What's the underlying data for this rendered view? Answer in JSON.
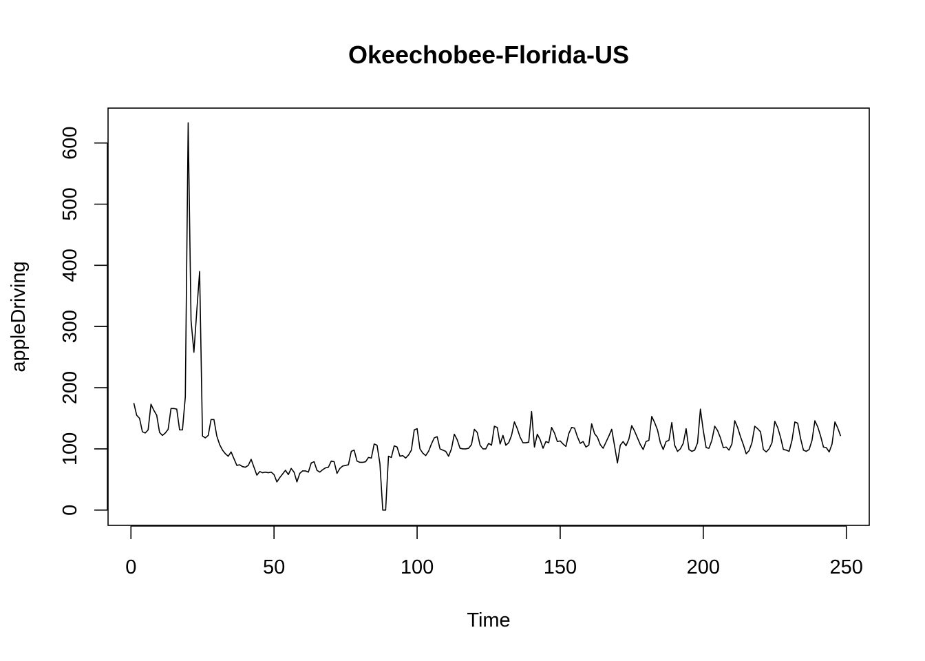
{
  "chart_data": {
    "type": "line",
    "title": "Okeechobee-Florida-US",
    "xlabel": "Time",
    "ylabel": "appleDriving",
    "xlim": [
      -8,
      258
    ],
    "ylim": [
      -25,
      657
    ],
    "x_ticks": [
      0,
      50,
      100,
      150,
      200,
      250
    ],
    "y_ticks": [
      0,
      100,
      200,
      300,
      400,
      500,
      600
    ],
    "grid": false,
    "legend": "none",
    "line_color": "#000000",
    "series": [
      {
        "x_start": 1,
        "values": [
          175,
          155,
          150,
          128,
          126,
          131,
          173,
          163,
          155,
          127,
          122,
          126,
          132,
          166,
          166,
          165,
          131,
          131,
          185,
          633,
          310,
          258,
          325,
          390,
          121,
          118,
          122,
          148,
          148,
          121,
          107,
          98,
          92,
          88,
          95,
          84,
          73,
          74,
          71,
          70,
          73,
          83,
          70,
          57,
          63,
          61,
          62,
          61,
          62,
          58,
          46,
          53,
          59,
          65,
          58,
          68,
          62,
          46,
          60,
          64,
          64,
          62,
          77,
          79,
          65,
          62,
          66,
          69,
          70,
          80,
          79,
          60,
          68,
          72,
          73,
          74,
          96,
          98,
          80,
          78,
          78,
          79,
          86,
          85,
          108,
          106,
          76,
          0,
          0,
          88,
          86,
          105,
          103,
          88,
          89,
          85,
          90,
          98,
          131,
          133,
          100,
          93,
          89,
          96,
          108,
          118,
          120,
          100,
          98,
          96,
          88,
          100,
          124,
          115,
          101,
          100,
          100,
          101,
          107,
          132,
          127,
          106,
          100,
          100,
          109,
          106,
          137,
          135,
          108,
          122,
          106,
          110,
          122,
          144,
          133,
          119,
          110,
          110,
          111,
          161,
          103,
          124,
          115,
          101,
          112,
          110,
          135,
          126,
          112,
          113,
          108,
          104,
          125,
          135,
          134,
          120,
          109,
          112,
          103,
          106,
          141,
          125,
          119,
          107,
          101,
          111,
          121,
          132,
          105,
          77,
          106,
          112,
          105,
          116,
          138,
          129,
          118,
          107,
          99,
          112,
          114,
          153,
          143,
          131,
          110,
          99,
          112,
          114,
          143,
          106,
          96,
          100,
          109,
          133,
          99,
          96,
          98,
          110,
          165,
          130,
          102,
          101,
          114,
          137,
          130,
          118,
          102,
          103,
          98,
          108,
          146,
          135,
          120,
          107,
          92,
          97,
          110,
          137,
          133,
          128,
          99,
          95,
          100,
          110,
          145,
          135,
          119,
          99,
          98,
          96,
          114,
          144,
          142,
          117,
          98,
          96,
          99,
          114,
          146,
          136,
          121,
          103,
          102,
          95,
          108,
          144,
          134,
          121
        ]
      }
    ]
  }
}
